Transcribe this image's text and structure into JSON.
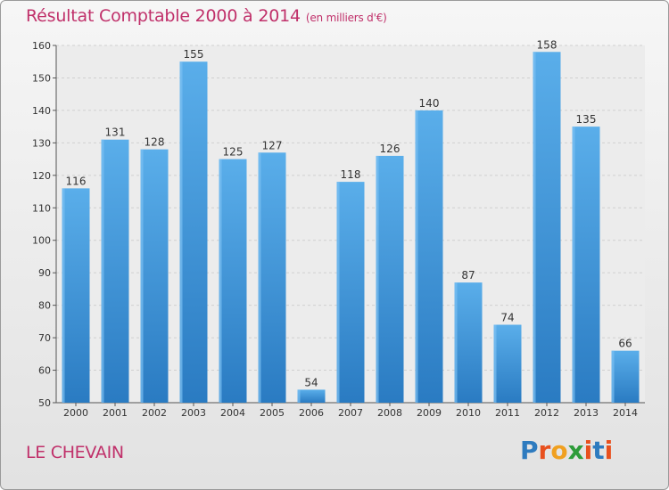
{
  "title": "Résultat Comptable 2000 à 2014",
  "subtitle": "(en milliers d'€)",
  "location": "LE CHEVAIN",
  "logo": {
    "text": "Proxiti",
    "colors": [
      "#2e7bbf",
      "#e8501e",
      "#f0a020",
      "#2e9c3a",
      "#e8501e",
      "#2e7bbf",
      "#e8501e"
    ]
  },
  "colors": {
    "bar": "#3a8fd6",
    "bar_light": "#5aaeea",
    "bar_dark": "#2a7bc2",
    "title": "#c0306a"
  },
  "chart_data": {
    "type": "bar",
    "categories": [
      "2000",
      "2001",
      "2002",
      "2003",
      "2004",
      "2005",
      "2006",
      "2007",
      "2008",
      "2009",
      "2010",
      "2011",
      "2012",
      "2013",
      "2014"
    ],
    "values": [
      116,
      131,
      128,
      155,
      125,
      127,
      54,
      118,
      126,
      140,
      87,
      74,
      158,
      135,
      66
    ],
    "ylim": [
      50,
      160
    ],
    "yticks": [
      50,
      60,
      70,
      80,
      90,
      100,
      110,
      120,
      130,
      140,
      150,
      160
    ],
    "grid": true
  }
}
